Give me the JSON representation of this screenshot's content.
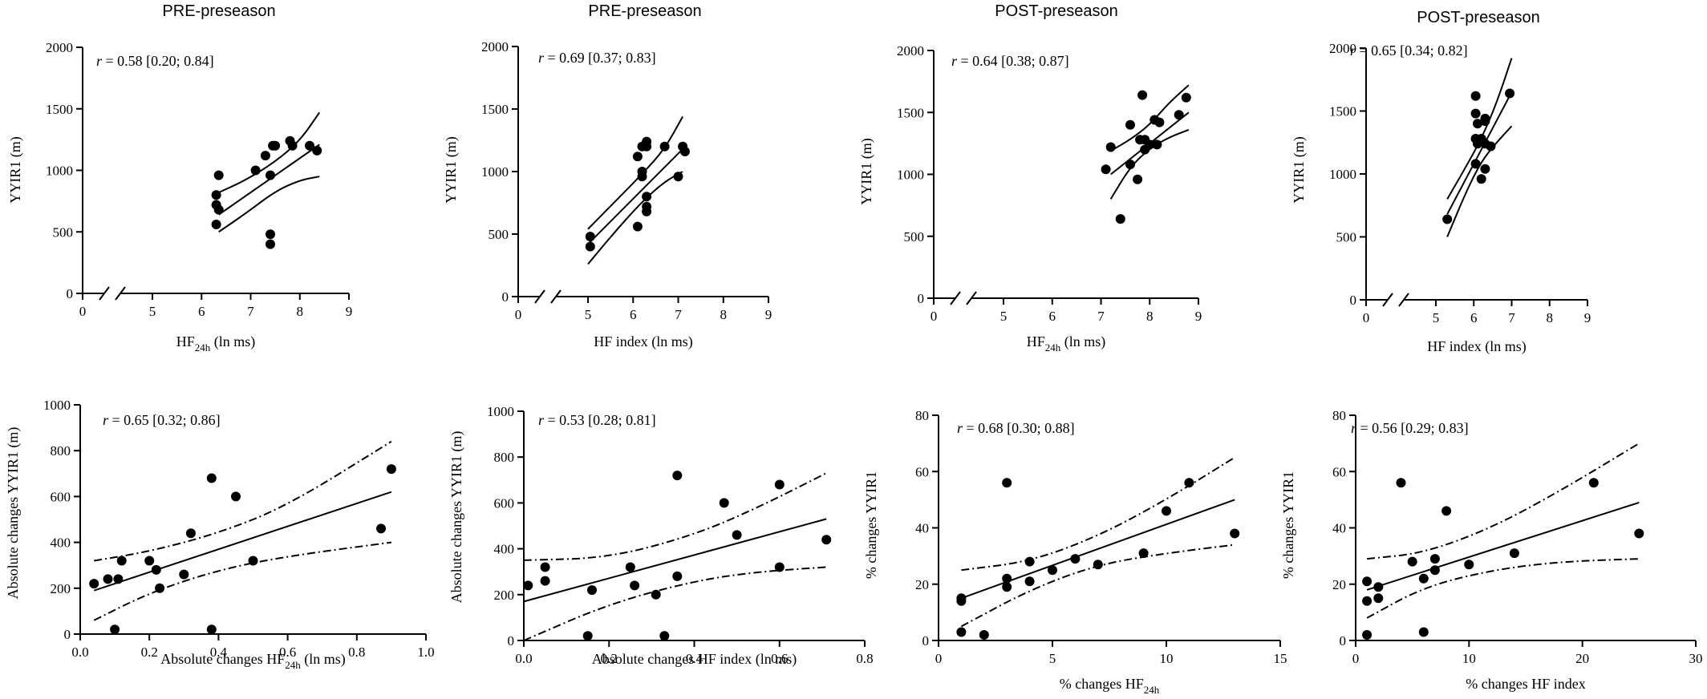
{
  "chart_data": [
    {
      "type": "scatter",
      "title": "PRE-preseason",
      "xlabel": "HF",
      "xlabel_sub": "24h",
      "xlabel_suffix": " (ln ms)",
      "ylabel": "YYIR1 (m)",
      "r_label": "= 0.58 [0.20; 0.84]",
      "xlim": [
        0,
        9
      ],
      "ylim": [
        0,
        2000
      ],
      "x_break": true,
      "xticks": [
        0,
        5,
        6,
        7,
        8,
        9
      ],
      "yticks": [
        0,
        500,
        1000,
        1500,
        2000
      ],
      "points": [
        [
          6.3,
          560
        ],
        [
          6.3,
          720
        ],
        [
          6.3,
          800
        ],
        [
          6.35,
          680
        ],
        [
          6.35,
          960
        ],
        [
          7.1,
          1000
        ],
        [
          7.3,
          1120
        ],
        [
          7.4,
          400
        ],
        [
          7.4,
          480
        ],
        [
          7.4,
          960
        ],
        [
          7.45,
          1200
        ],
        [
          7.5,
          1200
        ],
        [
          7.8,
          1240
        ],
        [
          7.85,
          1200
        ],
        [
          8.2,
          1200
        ],
        [
          8.35,
          1160
        ]
      ],
      "band": "solid",
      "fit": [
        [
          6.35,
          640
        ],
        [
          8.4,
          1210
        ]
      ],
      "ci_upper": [
        [
          6.35,
          820
        ],
        [
          6.9,
          920
        ],
        [
          7.5,
          1070
        ],
        [
          8.0,
          1240
        ],
        [
          8.4,
          1470
        ]
      ],
      "ci_lower": [
        [
          6.35,
          500
        ],
        [
          6.9,
          650
        ],
        [
          7.5,
          830
        ],
        [
          8.0,
          920
        ],
        [
          8.4,
          950
        ]
      ]
    },
    {
      "type": "scatter",
      "title": "PRE-preseason",
      "xlabel": "HF index (ln ms)",
      "xlabel_sub": "",
      "xlabel_suffix": "",
      "ylabel": "YYIR1 (m)",
      "r_label": "= 0.69 [0.37; 0.83]",
      "xlim": [
        0,
        9
      ],
      "ylim": [
        0,
        2000
      ],
      "x_break": true,
      "xticks": [
        0,
        5,
        6,
        7,
        8,
        9
      ],
      "yticks": [
        0,
        500,
        1000,
        1500,
        2000
      ],
      "points": [
        [
          5.05,
          400
        ],
        [
          5.05,
          480
        ],
        [
          6.1,
          560
        ],
        [
          6.1,
          1120
        ],
        [
          6.2,
          960
        ],
        [
          6.2,
          1000
        ],
        [
          6.2,
          1200
        ],
        [
          6.3,
          680
        ],
        [
          6.3,
          720
        ],
        [
          6.3,
          800
        ],
        [
          6.3,
          1240
        ],
        [
          6.3,
          1200
        ],
        [
          6.7,
          1200
        ],
        [
          7.0,
          960
        ],
        [
          7.1,
          1200
        ],
        [
          7.15,
          1160
        ]
      ],
      "band": "solid",
      "fit": [
        [
          5.0,
          420
        ],
        [
          7.1,
          1180
        ]
      ],
      "ci_upper": [
        [
          5.0,
          540
        ],
        [
          5.6,
          760
        ],
        [
          6.2,
          980
        ],
        [
          6.7,
          1180
        ],
        [
          7.1,
          1440
        ]
      ],
      "ci_lower": [
        [
          5.0,
          260
        ],
        [
          5.6,
          520
        ],
        [
          6.2,
          760
        ],
        [
          6.7,
          920
        ],
        [
          7.1,
          1000
        ]
      ]
    },
    {
      "type": "scatter",
      "title": "POST-preseason",
      "xlabel": "HF",
      "xlabel_sub": "24h",
      "xlabel_suffix": " (ln ms)",
      "ylabel": "YYIR1 (m)",
      "r_label": "= 0.64 [0.38; 0.87]",
      "xlim": [
        0,
        9
      ],
      "ylim": [
        0,
        2000
      ],
      "x_break": true,
      "xticks": [
        0,
        5,
        6,
        7,
        8,
        9
      ],
      "yticks": [
        0,
        500,
        1000,
        1500,
        2000
      ],
      "points": [
        [
          7.1,
          1040
        ],
        [
          7.2,
          1220
        ],
        [
          7.4,
          640
        ],
        [
          7.6,
          1080
        ],
        [
          7.6,
          1400
        ],
        [
          7.75,
          960
        ],
        [
          7.8,
          1280
        ],
        [
          7.85,
          1640
        ],
        [
          7.9,
          1280
        ],
        [
          7.9,
          1200
        ],
        [
          8.0,
          1240
        ],
        [
          8.1,
          1440
        ],
        [
          8.15,
          1240
        ],
        [
          8.2,
          1420
        ],
        [
          8.6,
          1480
        ],
        [
          8.75,
          1620
        ]
      ],
      "band": "solid",
      "fit": [
        [
          7.2,
          1000
        ],
        [
          8.8,
          1500
        ]
      ],
      "ci_upper": [
        [
          7.2,
          1190
        ],
        [
          7.6,
          1280
        ],
        [
          8.0,
          1400
        ],
        [
          8.4,
          1580
        ],
        [
          8.8,
          1720
        ]
      ],
      "ci_lower": [
        [
          7.2,
          800
        ],
        [
          7.6,
          1060
        ],
        [
          8.0,
          1210
        ],
        [
          8.4,
          1300
        ],
        [
          8.8,
          1360
        ]
      ]
    },
    {
      "type": "scatter",
      "title": "POST-preseason",
      "xlabel": "HF index (ln ms)",
      "xlabel_sub": "",
      "xlabel_suffix": "",
      "ylabel": "YYIR1 (m)",
      "r_label": "= 0.65 [0.34; 0.82]",
      "xlim": [
        0,
        9
      ],
      "ylim": [
        0,
        2000
      ],
      "x_break": true,
      "xticks": [
        0,
        5,
        6,
        7,
        8,
        9
      ],
      "yticks": [
        0,
        500,
        1000,
        1500,
        2000
      ],
      "points": [
        [
          5.3,
          640
        ],
        [
          6.05,
          1080
        ],
        [
          6.05,
          1280
        ],
        [
          6.05,
          1480
        ],
        [
          6.05,
          1620
        ],
        [
          6.1,
          1240
        ],
        [
          6.1,
          1400
        ],
        [
          6.2,
          960
        ],
        [
          6.2,
          1280
        ],
        [
          6.3,
          1420
        ],
        [
          6.3,
          1440
        ],
        [
          6.3,
          1040
        ],
        [
          6.3,
          1240
        ],
        [
          6.45,
          1220
        ],
        [
          6.95,
          1640
        ]
      ],
      "band": "solid",
      "fit": [
        [
          5.3,
          680
        ],
        [
          7.0,
          1650
        ]
      ],
      "ci_upper": [
        [
          5.3,
          800
        ],
        [
          5.8,
          1060
        ],
        [
          6.2,
          1280
        ],
        [
          6.6,
          1560
        ],
        [
          7.0,
          1920
        ]
      ],
      "ci_lower": [
        [
          5.3,
          500
        ],
        [
          5.8,
          860
        ],
        [
          6.2,
          1100
        ],
        [
          6.6,
          1250
        ],
        [
          7.0,
          1380
        ]
      ]
    },
    {
      "type": "scatter",
      "title": "",
      "xlabel": "Absolute changes HF",
      "xlabel_sub": "24h",
      "xlabel_suffix": "  (ln ms)",
      "ylabel": "Absolute changes YYIR1 (m)",
      "r_label": "= 0.65 [0.32; 0.86]",
      "xlim": [
        0,
        1.0
      ],
      "ylim": [
        0,
        1000
      ],
      "x_break": false,
      "xticks": [
        0.0,
        0.2,
        0.4,
        0.6,
        0.8,
        1.0
      ],
      "xtick_labels": [
        "0.0",
        "0.2",
        "0.4",
        "0.6",
        "0.8",
        "1.0"
      ],
      "yticks": [
        0,
        200,
        400,
        600,
        800,
        1000
      ],
      "points": [
        [
          0.04,
          220
        ],
        [
          0.08,
          240
        ],
        [
          0.1,
          20
        ],
        [
          0.11,
          240
        ],
        [
          0.12,
          320
        ],
        [
          0.2,
          320
        ],
        [
          0.22,
          280
        ],
        [
          0.23,
          200
        ],
        [
          0.3,
          260
        ],
        [
          0.32,
          440
        ],
        [
          0.38,
          20
        ],
        [
          0.38,
          680
        ],
        [
          0.45,
          600
        ],
        [
          0.5,
          320
        ],
        [
          0.87,
          460
        ],
        [
          0.9,
          720
        ]
      ],
      "band": "dashed",
      "fit": [
        [
          0.04,
          190
        ],
        [
          0.9,
          620
        ]
      ],
      "ci_upper": [
        [
          0.04,
          320
        ],
        [
          0.2,
          360
        ],
        [
          0.4,
          440
        ],
        [
          0.6,
          560
        ],
        [
          0.9,
          840
        ]
      ],
      "ci_lower": [
        [
          0.04,
          60
        ],
        [
          0.2,
          180
        ],
        [
          0.4,
          280
        ],
        [
          0.6,
          340
        ],
        [
          0.9,
          400
        ]
      ]
    },
    {
      "type": "scatter",
      "title": "",
      "xlabel": "Absolute changes HF index (ln ms)",
      "xlabel_sub": "",
      "xlabel_suffix": "",
      "ylabel": "Absolute changes YYIR1 (m)",
      "r_label": "= 0.53 [0.28; 0.81]",
      "xlim": [
        0,
        0.8
      ],
      "ylim": [
        0,
        1000
      ],
      "x_break": false,
      "xticks": [
        0.0,
        0.2,
        0.4,
        0.6,
        0.8
      ],
      "xtick_labels": [
        "0.0",
        "0.2",
        "0.4",
        "0.6",
        "0.8"
      ],
      "yticks": [
        0,
        200,
        400,
        600,
        800,
        1000
      ],
      "points": [
        [
          0.01,
          240
        ],
        [
          0.05,
          260
        ],
        [
          0.05,
          320
        ],
        [
          0.15,
          20
        ],
        [
          0.16,
          220
        ],
        [
          0.25,
          320
        ],
        [
          0.26,
          240
        ],
        [
          0.31,
          200
        ],
        [
          0.33,
          20
        ],
        [
          0.36,
          280
        ],
        [
          0.36,
          720
        ],
        [
          0.47,
          600
        ],
        [
          0.5,
          460
        ],
        [
          0.6,
          320
        ],
        [
          0.6,
          680
        ],
        [
          0.71,
          440
        ]
      ],
      "band": "dashed",
      "fit": [
        [
          0.0,
          170
        ],
        [
          0.71,
          530
        ]
      ],
      "ci_upper": [
        [
          0.0,
          350
        ],
        [
          0.2,
          360
        ],
        [
          0.4,
          460
        ],
        [
          0.55,
          580
        ],
        [
          0.71,
          730
        ]
      ],
      "ci_lower": [
        [
          0.0,
          0
        ],
        [
          0.2,
          160
        ],
        [
          0.4,
          260
        ],
        [
          0.55,
          300
        ],
        [
          0.71,
          320
        ]
      ]
    },
    {
      "type": "scatter",
      "title": "",
      "xlabel": "% changes HF",
      "xlabel_sub": "24h",
      "xlabel_suffix": "",
      "ylabel": "% changes YYIR1",
      "r_label": "= 0.68 [0.30; 0.88]",
      "xlim": [
        0,
        15
      ],
      "ylim": [
        0,
        80
      ],
      "x_break": false,
      "xticks": [
        0,
        5,
        10,
        15
      ],
      "xtick_labels": [
        "0",
        "5",
        "10",
        "15"
      ],
      "yticks": [
        0,
        20,
        40,
        60,
        80
      ],
      "points": [
        [
          1,
          3
        ],
        [
          1,
          14
        ],
        [
          1,
          15
        ],
        [
          2,
          2
        ],
        [
          3,
          19
        ],
        [
          3,
          22
        ],
        [
          3,
          56
        ],
        [
          4,
          21
        ],
        [
          4,
          28
        ],
        [
          5,
          25
        ],
        [
          6,
          29
        ],
        [
          7,
          27
        ],
        [
          9,
          31
        ],
        [
          10,
          46
        ],
        [
          11,
          56
        ],
        [
          13,
          38
        ]
      ],
      "band": "dashed",
      "fit": [
        [
          1,
          15
        ],
        [
          13,
          50
        ]
      ],
      "ci_upper": [
        [
          1,
          25
        ],
        [
          4,
          28
        ],
        [
          7,
          37
        ],
        [
          10,
          50
        ],
        [
          13,
          65
        ]
      ],
      "ci_lower": [
        [
          1,
          5
        ],
        [
          4,
          18
        ],
        [
          7,
          27
        ],
        [
          10,
          31
        ],
        [
          13,
          34
        ]
      ]
    },
    {
      "type": "scatter",
      "title": "",
      "xlabel": "% changes HF index",
      "xlabel_sub": "",
      "xlabel_suffix": "",
      "ylabel": "% changes YYIR1",
      "r_label": "= 0.56 [0.29; 0.83]",
      "xlim": [
        0,
        30
      ],
      "ylim": [
        0,
        80
      ],
      "x_break": false,
      "xticks": [
        0,
        10,
        20,
        30
      ],
      "xtick_labels": [
        "0",
        "10",
        "20",
        "30"
      ],
      "yticks": [
        0,
        20,
        40,
        60,
        80
      ],
      "points": [
        [
          1,
          2
        ],
        [
          1,
          14
        ],
        [
          1,
          21
        ],
        [
          2,
          15
        ],
        [
          2,
          19
        ],
        [
          4,
          56
        ],
        [
          5,
          28
        ],
        [
          6,
          3
        ],
        [
          6,
          22
        ],
        [
          7,
          25
        ],
        [
          7,
          29
        ],
        [
          8,
          46
        ],
        [
          10,
          27
        ],
        [
          14,
          31
        ],
        [
          21,
          56
        ],
        [
          25,
          38
        ]
      ],
      "band": "dashed",
      "fit": [
        [
          1,
          18
        ],
        [
          25,
          49
        ]
      ],
      "ci_upper": [
        [
          1,
          29
        ],
        [
          6,
          31
        ],
        [
          12,
          40
        ],
        [
          18,
          53
        ],
        [
          25,
          70
        ]
      ],
      "ci_lower": [
        [
          1,
          8
        ],
        [
          6,
          19
        ],
        [
          12,
          25
        ],
        [
          18,
          28
        ],
        [
          25,
          29
        ]
      ]
    }
  ]
}
